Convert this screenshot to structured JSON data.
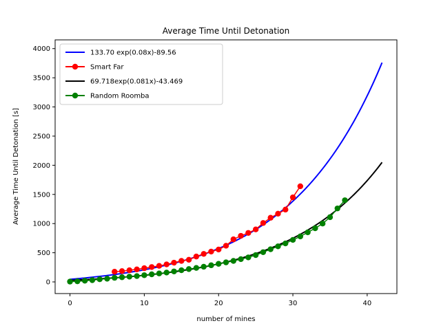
{
  "chart_data": {
    "type": "line",
    "title": "Average Time Until Detonation",
    "xlabel": "number of mines",
    "ylabel": "Average Time Until Detonation [s]",
    "xlim": [
      -2,
      44
    ],
    "ylim": [
      -200,
      4150
    ],
    "xticks": [
      0,
      10,
      20,
      30,
      40
    ],
    "yticks": [
      0,
      500,
      1000,
      1500,
      2000,
      2500,
      3000,
      3500,
      4000
    ],
    "grid": false,
    "legend_position": "top-left",
    "series": [
      {
        "name": "133.70 exp(0.08x)-89.56",
        "kind": "fit",
        "color": "#0000ff",
        "a": 133.7,
        "b": 0.08,
        "c": -89.56,
        "x_range": [
          0,
          42
        ]
      },
      {
        "name": "Smart Far",
        "kind": "points",
        "color": "#ff0000",
        "x": [
          6,
          7,
          8,
          9,
          10,
          11,
          12,
          13,
          14,
          15,
          16,
          17,
          18,
          19,
          20,
          21,
          22,
          23,
          24,
          25,
          26,
          27,
          28,
          29,
          30,
          31
        ],
        "y": [
          175,
          185,
          200,
          215,
          235,
          255,
          275,
          300,
          330,
          360,
          380,
          435,
          480,
          520,
          555,
          620,
          730,
          790,
          840,
          900,
          1010,
          1100,
          1170,
          1240,
          1450,
          1640
        ]
      },
      {
        "name": "69.718exp(0.081x)-43.469",
        "kind": "fit",
        "color": "#000000",
        "a": 69.718,
        "b": 0.081,
        "c": -43.469,
        "x_range": [
          0,
          42
        ]
      },
      {
        "name": "Random Roomba",
        "kind": "points",
        "color": "#008000",
        "x": [
          0,
          1,
          2,
          3,
          4,
          5,
          6,
          7,
          8,
          9,
          10,
          11,
          12,
          13,
          14,
          15,
          16,
          17,
          18,
          19,
          20,
          21,
          22,
          23,
          24,
          25,
          26,
          27,
          28,
          29,
          30,
          31,
          32,
          33,
          34,
          35,
          36,
          37
        ],
        "y": [
          5,
          10,
          20,
          30,
          45,
          55,
          70,
          80,
          90,
          100,
          115,
          130,
          145,
          160,
          180,
          200,
          220,
          240,
          260,
          285,
          310,
          335,
          360,
          390,
          420,
          460,
          510,
          560,
          610,
          660,
          720,
          780,
          850,
          920,
          1000,
          1110,
          1260,
          1400
        ]
      }
    ]
  }
}
